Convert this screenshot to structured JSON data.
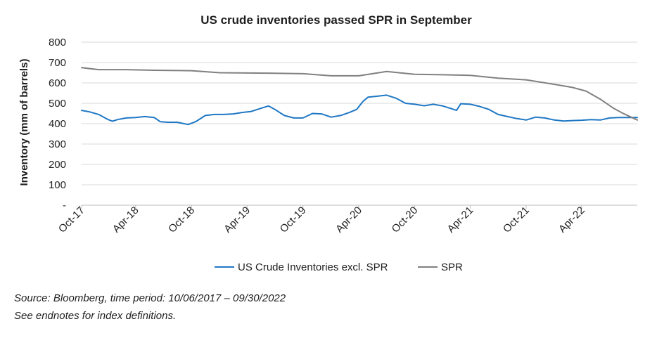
{
  "chart_data": {
    "type": "line",
    "title": "US crude inventories passed SPR in September",
    "ylabel": "Inventory (mm of barrels)",
    "xlabel": "",
    "ylim": [
      0,
      800
    ],
    "y_ticks": [
      "-",
      "100",
      "200",
      "300",
      "400",
      "500",
      "600",
      "700",
      "800"
    ],
    "x_tick_labels": [
      "Oct-17",
      "Apr-18",
      "Oct-18",
      "Apr-19",
      "Oct-19",
      "Apr-20",
      "Oct-20",
      "Apr-21",
      "Oct-21",
      "Apr-22"
    ],
    "x_range": [
      "2017-10-06",
      "2022-09-30"
    ],
    "grid": "horizontal",
    "legend_position": "bottom",
    "series": [
      {
        "name": "US Crude Inventories excl. SPR",
        "color": "#1f77c4",
        "points": [
          [
            "2017-10-06",
            465
          ],
          [
            "2017-11-01",
            458
          ],
          [
            "2017-12-01",
            445
          ],
          [
            "2018-01-01",
            420
          ],
          [
            "2018-01-15",
            412
          ],
          [
            "2018-02-01",
            420
          ],
          [
            "2018-03-01",
            428
          ],
          [
            "2018-04-01",
            430
          ],
          [
            "2018-05-01",
            435
          ],
          [
            "2018-06-01",
            430
          ],
          [
            "2018-06-20",
            410
          ],
          [
            "2018-07-15",
            407
          ],
          [
            "2018-08-15",
            407
          ],
          [
            "2018-09-20",
            396
          ],
          [
            "2018-10-15",
            410
          ],
          [
            "2018-11-15",
            440
          ],
          [
            "2018-12-15",
            445
          ],
          [
            "2019-01-15",
            445
          ],
          [
            "2019-02-15",
            448
          ],
          [
            "2019-03-15",
            455
          ],
          [
            "2019-04-15",
            460
          ],
          [
            "2019-05-15",
            475
          ],
          [
            "2019-06-10",
            487
          ],
          [
            "2019-07-01",
            470
          ],
          [
            "2019-08-01",
            440
          ],
          [
            "2019-09-01",
            428
          ],
          [
            "2019-10-01",
            428
          ],
          [
            "2019-11-01",
            450
          ],
          [
            "2019-12-01",
            448
          ],
          [
            "2020-01-01",
            432
          ],
          [
            "2020-02-01",
            440
          ],
          [
            "2020-03-01",
            455
          ],
          [
            "2020-03-25",
            470
          ],
          [
            "2020-04-15",
            510
          ],
          [
            "2020-05-01",
            530
          ],
          [
            "2020-06-01",
            535
          ],
          [
            "2020-07-01",
            540
          ],
          [
            "2020-08-01",
            525
          ],
          [
            "2020-09-01",
            500
          ],
          [
            "2020-10-01",
            495
          ],
          [
            "2020-11-01",
            488
          ],
          [
            "2020-12-01",
            495
          ],
          [
            "2021-01-01",
            487
          ],
          [
            "2021-02-01",
            472
          ],
          [
            "2021-02-15",
            465
          ],
          [
            "2021-03-01",
            498
          ],
          [
            "2021-04-01",
            495
          ],
          [
            "2021-05-01",
            485
          ],
          [
            "2021-06-01",
            470
          ],
          [
            "2021-07-01",
            445
          ],
          [
            "2021-08-01",
            435
          ],
          [
            "2021-09-01",
            425
          ],
          [
            "2021-10-01",
            418
          ],
          [
            "2021-11-01",
            432
          ],
          [
            "2021-12-01",
            428
          ],
          [
            "2022-01-01",
            418
          ],
          [
            "2022-02-01",
            413
          ],
          [
            "2022-03-01",
            415
          ],
          [
            "2022-04-01",
            417
          ],
          [
            "2022-05-01",
            420
          ],
          [
            "2022-06-01",
            418
          ],
          [
            "2022-07-01",
            428
          ],
          [
            "2022-08-01",
            430
          ],
          [
            "2022-09-01",
            430
          ],
          [
            "2022-09-30",
            430
          ]
        ]
      },
      {
        "name": "SPR",
        "color": "#808080",
        "points": [
          [
            "2017-10-06",
            675
          ],
          [
            "2017-12-01",
            665
          ],
          [
            "2018-03-01",
            665
          ],
          [
            "2018-06-01",
            662
          ],
          [
            "2018-10-01",
            660
          ],
          [
            "2019-01-01",
            650
          ],
          [
            "2019-06-01",
            648
          ],
          [
            "2019-10-01",
            645
          ],
          [
            "2020-01-01",
            635
          ],
          [
            "2020-04-01",
            635
          ],
          [
            "2020-07-01",
            656
          ],
          [
            "2020-10-01",
            642
          ],
          [
            "2021-01-01",
            640
          ],
          [
            "2021-04-01",
            637
          ],
          [
            "2021-07-01",
            623
          ],
          [
            "2021-10-01",
            615
          ],
          [
            "2022-01-01",
            593
          ],
          [
            "2022-03-01",
            578
          ],
          [
            "2022-04-15",
            560
          ],
          [
            "2022-06-01",
            520
          ],
          [
            "2022-07-15",
            475
          ],
          [
            "2022-08-15",
            450
          ],
          [
            "2022-09-30",
            418
          ]
        ]
      }
    ]
  },
  "source_lines": [
    "Source: Bloomberg, time period: 10/06/2017 – 09/30/2022",
    "See endnotes for index definitions."
  ]
}
